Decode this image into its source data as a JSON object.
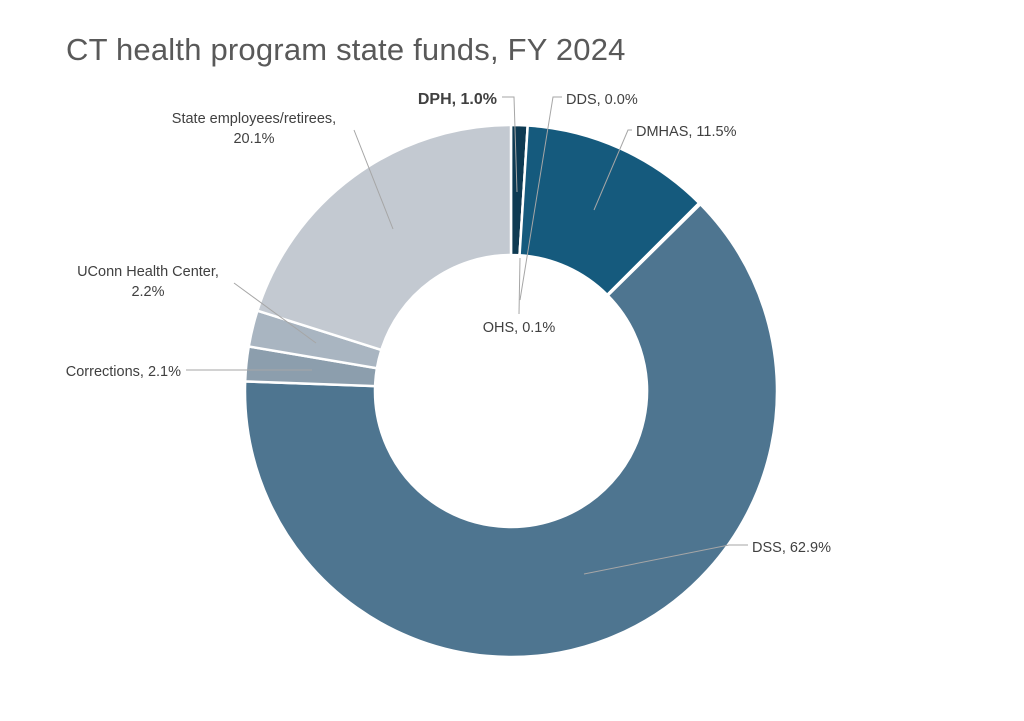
{
  "chart_data": {
    "type": "pie",
    "title": "CT health program state funds, FY 2024",
    "donut": true,
    "legend": "none",
    "slices": [
      {
        "name": "DPH",
        "value": 1.0,
        "label": "DPH, 1.0%",
        "color": "#0e3a52",
        "bold": true
      },
      {
        "name": "DDS",
        "value": 0.0,
        "label": "DDS, 0.0%",
        "color": "#0e3a52",
        "bold": false
      },
      {
        "name": "DMHAS",
        "value": 11.5,
        "label": "DMHAS, 11.5%",
        "color": "#155a7d",
        "bold": false
      },
      {
        "name": "OHS",
        "value": 0.1,
        "label": "OHS, 0.1%",
        "color": "#3e6e8f",
        "bold": false
      },
      {
        "name": "DSS",
        "value": 62.9,
        "label": "DSS, 62.9%",
        "color": "#4e7590",
        "bold": false
      },
      {
        "name": "Corrections",
        "value": 2.1,
        "label": "Corrections, 2.1%",
        "color": "#8c9ead",
        "bold": false
      },
      {
        "name": "UConn Health Center",
        "value": 2.2,
        "label_lines": [
          "UConn Health Center,",
          "2.2%"
        ],
        "color": "#a9b5c1",
        "bold": false
      },
      {
        "name": "State employees/retirees",
        "value": 20.1,
        "label_lines": [
          "State employees/retirees,",
          "20.1%"
        ],
        "color": "#c3c9d1",
        "bold": false
      }
    ]
  }
}
